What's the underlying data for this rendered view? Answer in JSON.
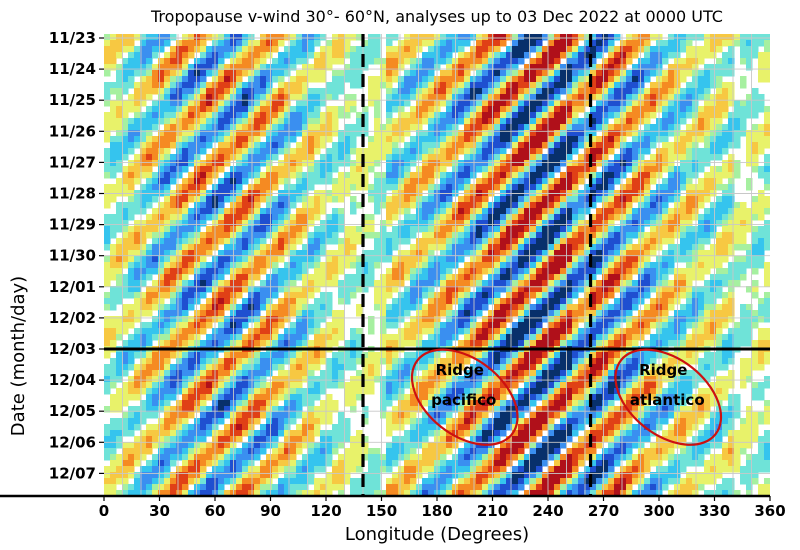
{
  "chart_data": {
    "type": "heatmap",
    "title": "Tropopause v-wind 30°- 60°N, analyses up to 03 Dec 2022 at 0000 UTC",
    "xlabel": "Longitude (Degrees)",
    "ylabel": "Date (month/day)",
    "xlim": [
      0,
      360
    ],
    "x_ticks": [
      0,
      30,
      60,
      90,
      120,
      150,
      180,
      210,
      240,
      270,
      300,
      330,
      360
    ],
    "x_tick_labels": [
      "0",
      "30",
      "60",
      "90",
      "120",
      "150",
      "180",
      "210",
      "240",
      "270",
      "300",
      "330",
      "360"
    ],
    "y_tick_labels": [
      "11/23",
      "11/24",
      "11/25",
      "11/26",
      "11/27",
      "11/28",
      "11/29",
      "11/30",
      "12/01",
      "12/02",
      "12/03",
      "12/04",
      "12/05",
      "12/06",
      "12/07"
    ],
    "grid": true,
    "colormap": [
      "#08306b",
      "#1f4fd0",
      "#3a8ff0",
      "#35c4ee",
      "#6fe3d8",
      "#a6f0a0",
      "#e8f26a",
      "#f7c842",
      "#f58a22",
      "#e04016",
      "#b0101a"
    ],
    "vertical_lines_lon": [
      140,
      263
    ],
    "analysis_line_date": "12/03",
    "annotations": [
      {
        "text_lines": [
          "Ridge",
          "pacifico"
        ],
        "center_lon": 195,
        "center_date_index": 11.55,
        "color": "#cc1111"
      },
      {
        "text_lines": [
          "Ridge",
          "atlantico"
        ],
        "center_lon": 305,
        "center_date_index": 11.55,
        "color": "#cc1111"
      }
    ]
  }
}
